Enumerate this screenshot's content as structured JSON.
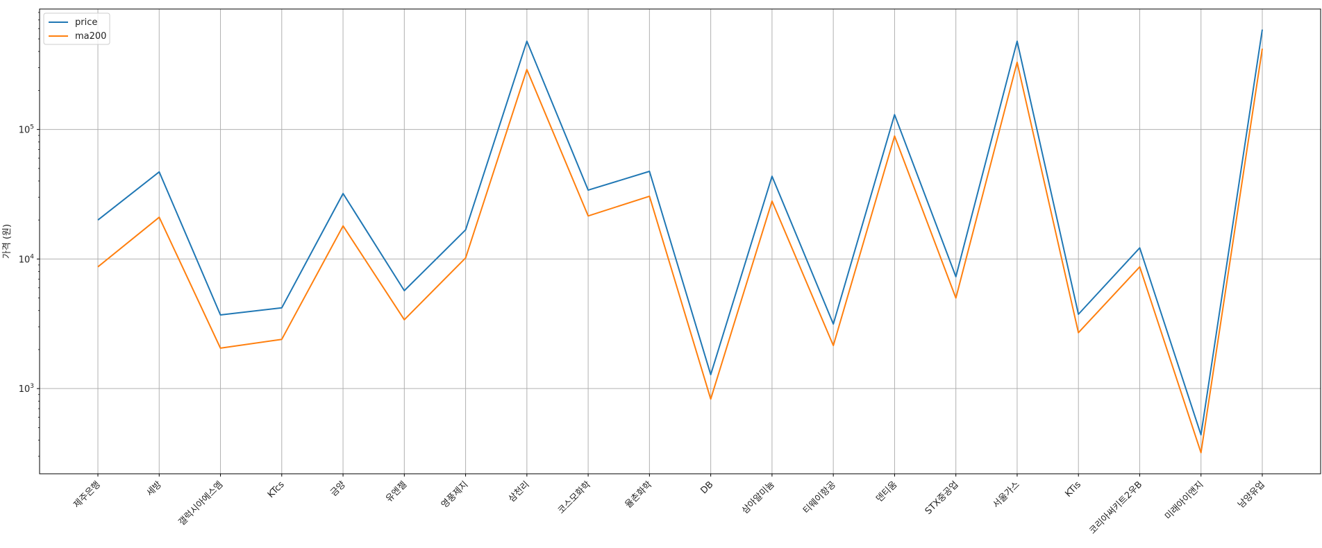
{
  "chart_data": {
    "type": "line",
    "title": "",
    "xlabel": "",
    "ylabel": "가격 (원)",
    "yscale": "log",
    "ylim": [
      220,
      850000
    ],
    "grid": true,
    "legend": "top-left",
    "categories": [
      "제주은행",
      "세방",
      "갤럭시아에스엠",
      "KTcs",
      "금양",
      "유엔젤",
      "영풍제지",
      "삼천리",
      "코스모화학",
      "율촌화학",
      "DB",
      "삼아알미늄",
      "티웨이항공",
      "덴티움",
      "STX중공업",
      "서울가스",
      "KTis",
      "코리아써키트2우B",
      "미래아이앤지",
      "남양유업"
    ],
    "series": [
      {
        "name": "price",
        "color": "#1f77b4",
        "values": [
          20000,
          47000,
          3700,
          4200,
          32000,
          5700,
          16800,
          480000,
          34000,
          47500,
          1280,
          43500,
          3150,
          130000,
          7300,
          480000,
          3750,
          12200,
          440,
          590000
        ]
      },
      {
        "name": "ma200",
        "color": "#ff7f0e",
        "values": [
          8700,
          21000,
          2050,
          2400,
          18000,
          3400,
          10200,
          290000,
          21500,
          30500,
          830,
          28000,
          2150,
          89000,
          5000,
          330000,
          2700,
          8700,
          320,
          420000
        ]
      }
    ],
    "y_ticks": [
      {
        "value": 1000,
        "base": "10",
        "exp": "3"
      },
      {
        "value": 10000,
        "base": "10",
        "exp": "4"
      },
      {
        "value": 100000,
        "base": "10",
        "exp": "5"
      }
    ]
  }
}
